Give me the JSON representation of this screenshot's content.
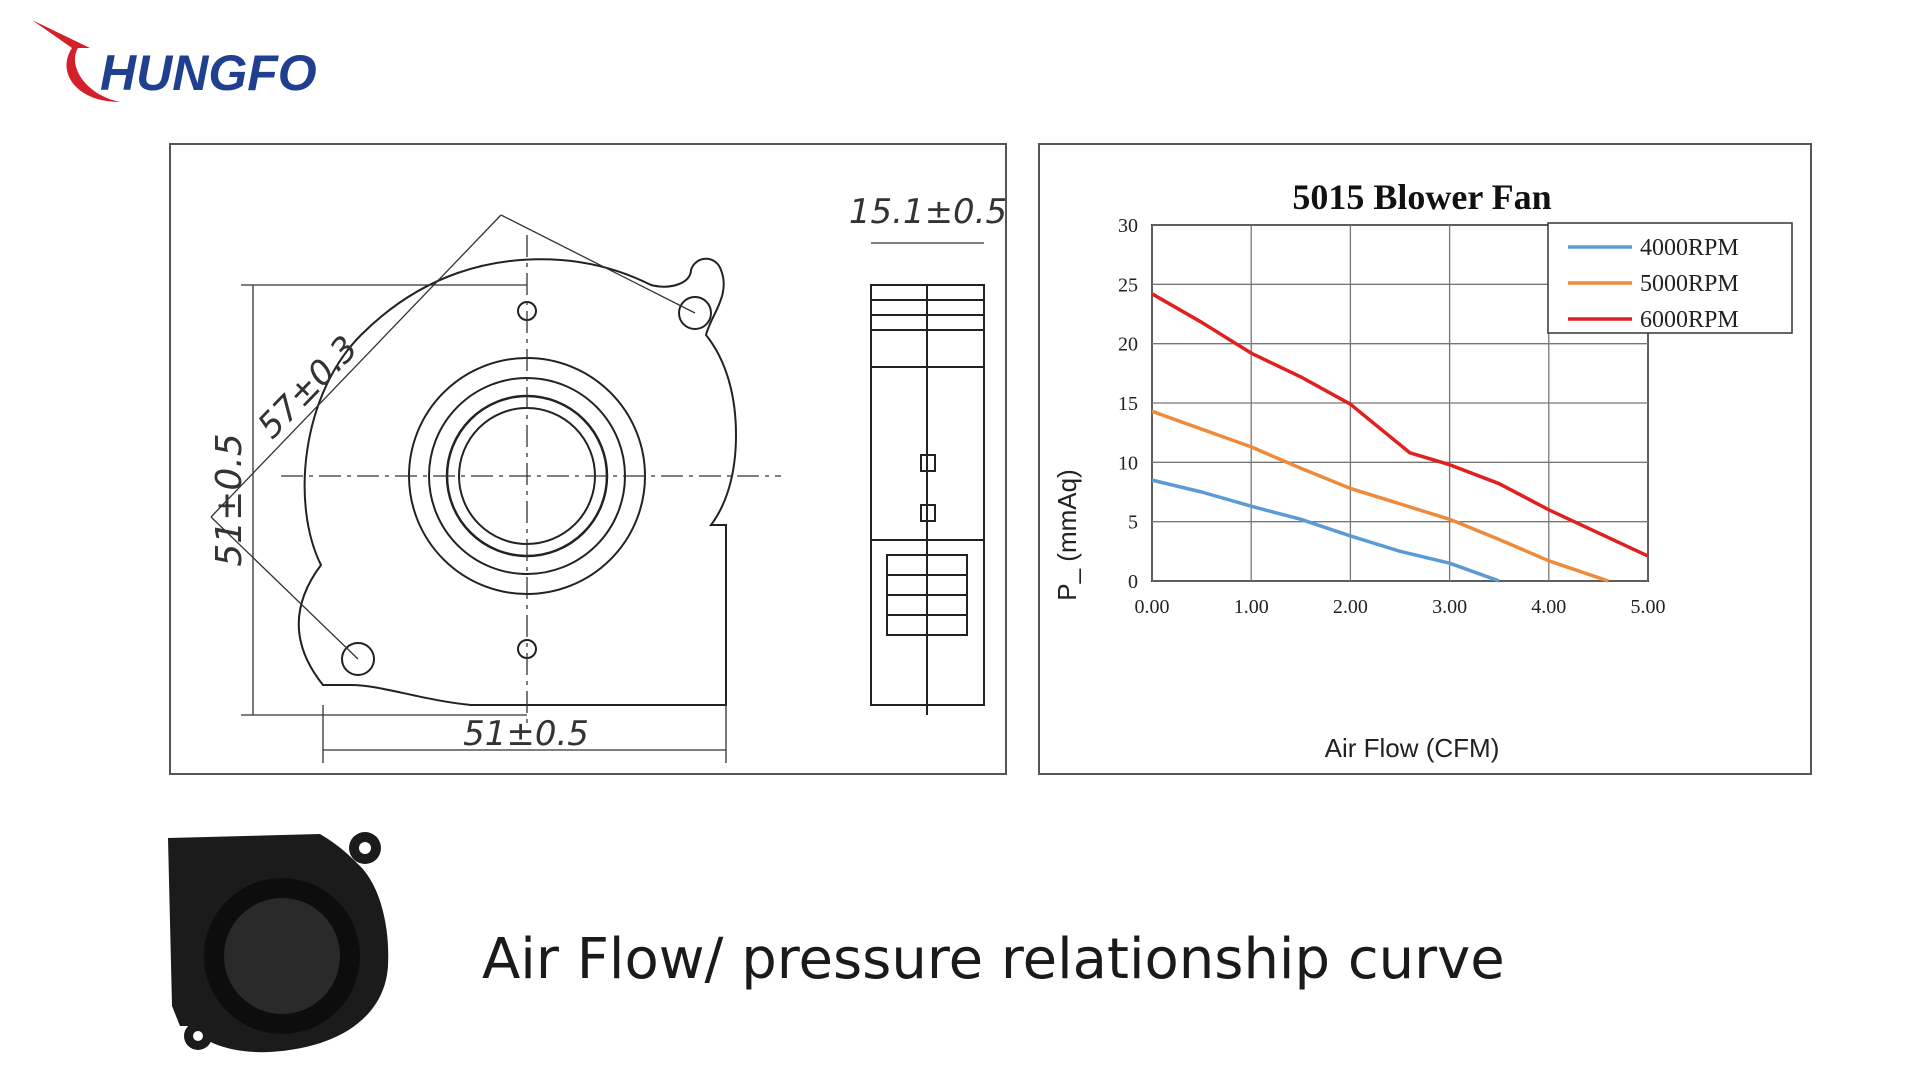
{
  "logo": {
    "text": "HUNGFO",
    "color": "#1f3f8f",
    "swoosh_color": "#d4202a"
  },
  "drawing": {
    "dim_width": "51±0.5",
    "dim_height": "51±0.5",
    "dim_diagonal": "57±0.3",
    "dim_thickness": "15.1±0.5"
  },
  "caption": "Air Flow/ pressure relationship curve",
  "chart_data": {
    "type": "line",
    "title": "5015 Blower Fan",
    "xlabel": "Air Flow (CFM)",
    "ylabel": "P_ (mmAq)",
    "xlim": [
      0,
      5
    ],
    "ylim": [
      0,
      30
    ],
    "x_ticks": [
      "0.00",
      "1.00",
      "2.00",
      "3.00",
      "4.00",
      "5.00"
    ],
    "y_ticks": [
      "0",
      "5",
      "10",
      "15",
      "20",
      "25",
      "30"
    ],
    "grid": true,
    "legend_position": "top-right",
    "series": [
      {
        "name": "4000RPM",
        "color": "#5b9bd5",
        "points": [
          [
            0,
            8.5
          ],
          [
            0.5,
            7.5
          ],
          [
            1.0,
            6.3
          ],
          [
            1.5,
            5.2
          ],
          [
            2.0,
            3.8
          ],
          [
            2.5,
            2.5
          ],
          [
            3.0,
            1.5
          ],
          [
            3.5,
            0
          ]
        ]
      },
      {
        "name": "5000RPM",
        "color": "#ed8b3a",
        "points": [
          [
            0,
            14.3
          ],
          [
            0.5,
            12.8
          ],
          [
            1.0,
            11.3
          ],
          [
            1.5,
            9.5
          ],
          [
            2.0,
            7.8
          ],
          [
            2.5,
            6.5
          ],
          [
            3.0,
            5.2
          ],
          [
            3.5,
            3.5
          ],
          [
            4.0,
            1.7
          ],
          [
            4.6,
            0
          ]
        ]
      },
      {
        "name": "6000RPM",
        "color": "#e02020",
        "points": [
          [
            0,
            24.2
          ],
          [
            0.5,
            21.8
          ],
          [
            1.0,
            19.2
          ],
          [
            1.5,
            17.2
          ],
          [
            2.0,
            14.9
          ],
          [
            2.6,
            10.8
          ],
          [
            3.0,
            9.8
          ],
          [
            3.5,
            8.2
          ],
          [
            4.0,
            6.0
          ],
          [
            5.0,
            2.1
          ]
        ]
      }
    ]
  }
}
